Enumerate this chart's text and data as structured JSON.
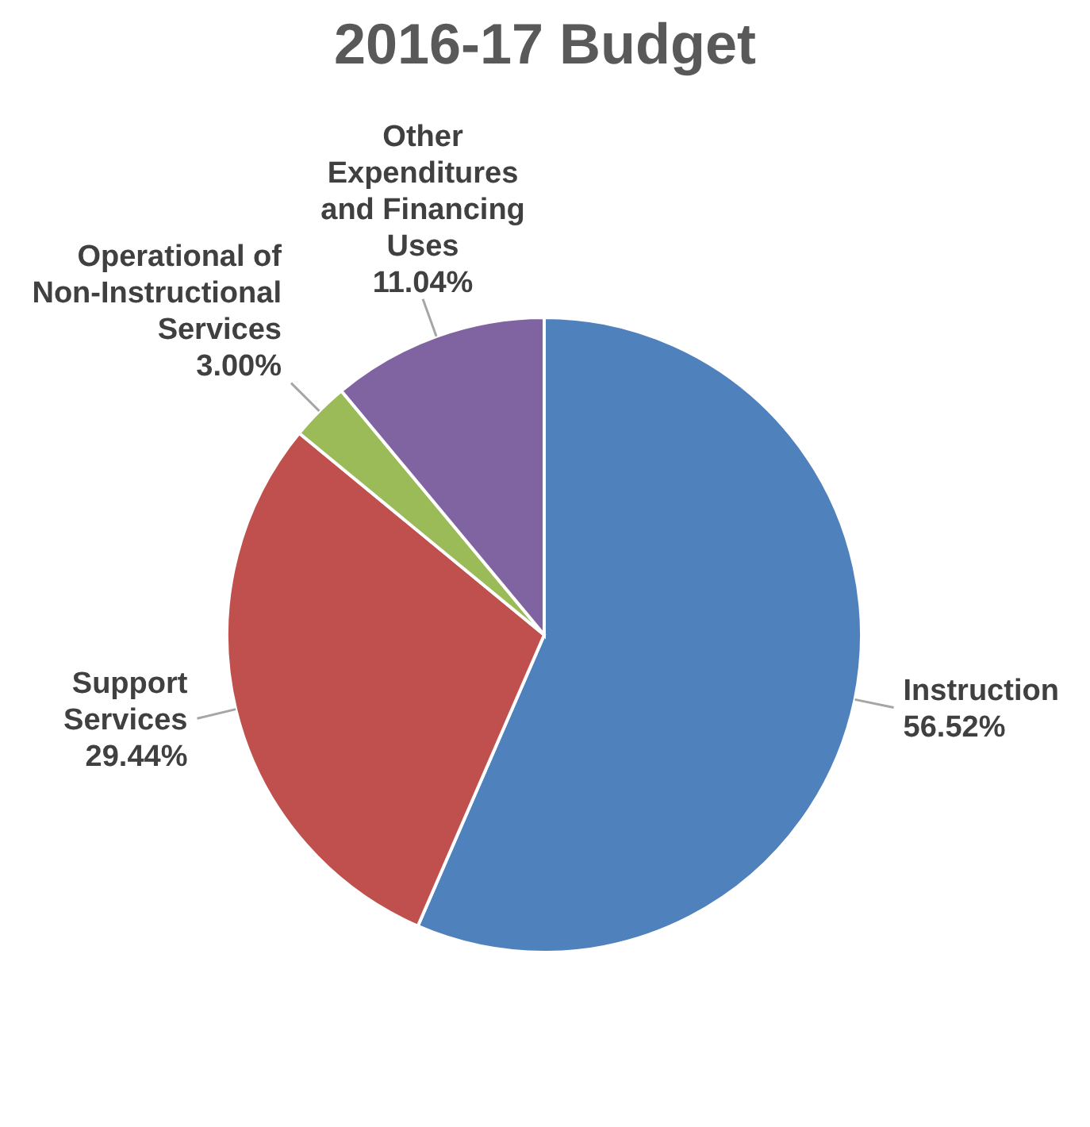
{
  "chart_data": {
    "type": "pie",
    "title": "2016-17 Budget",
    "categories": [
      "Instruction",
      "Support Services",
      "Operational of Non-Instructional Services",
      "Other Expenditures and Financing Uses"
    ],
    "values": [
      56.52,
      29.44,
      3.0,
      11.04
    ],
    "value_labels": [
      "56.52%",
      "29.44%",
      "3.00%",
      "11.04%"
    ],
    "colors": [
      "#4f81bd",
      "#c0504d",
      "#9bbb59",
      "#8064a2"
    ]
  }
}
